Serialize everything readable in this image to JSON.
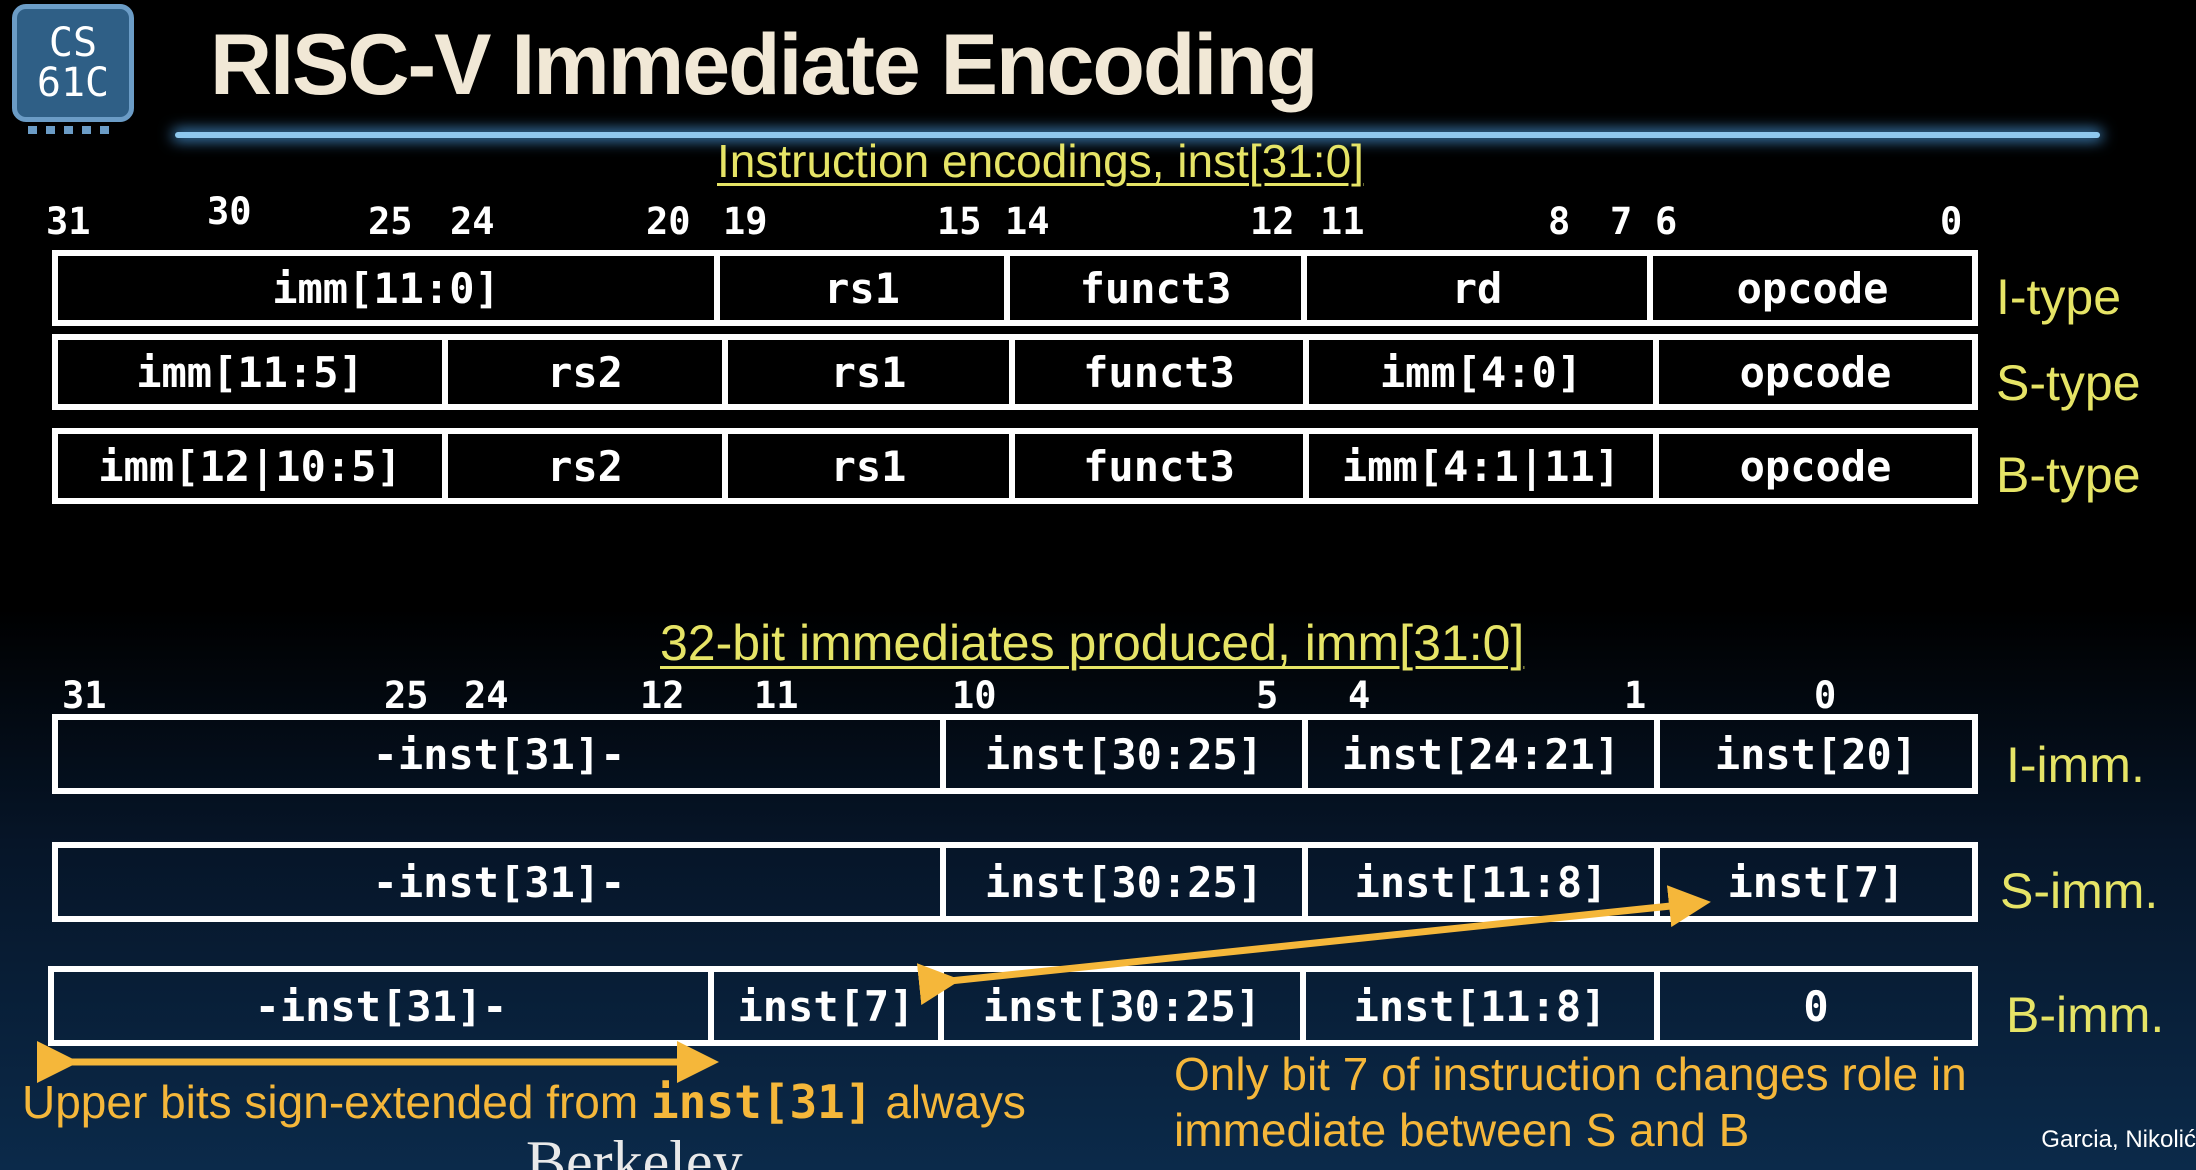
{
  "logo": {
    "line1": "CS",
    "line2": "61C"
  },
  "title": "RISC-V Immediate Encoding",
  "encodings": {
    "heading": "Instruction encodings, inst[31:0]",
    "bit_numbers": [
      "31",
      "30",
      "25",
      "24",
      "20",
      "19",
      "15",
      "14",
      "12",
      "11",
      "8",
      "7",
      "6",
      "0"
    ],
    "rows": [
      {
        "label": "I-type",
        "fields": [
          "imm[11:0]",
          "rs1",
          "funct3",
          "rd",
          "opcode"
        ]
      },
      {
        "label": "S-type",
        "fields": [
          "imm[11:5]",
          "rs2",
          "rs1",
          "funct3",
          "imm[4:0]",
          "opcode"
        ]
      },
      {
        "label": "B-type",
        "fields": [
          "imm[12|10:5]",
          "rs2",
          "rs1",
          "funct3",
          "imm[4:1|11]",
          "opcode"
        ]
      }
    ]
  },
  "immediates": {
    "heading": "32-bit immediates produced, imm[31:0]",
    "bit_numbers": [
      "31",
      "25",
      "24",
      "12",
      "11",
      "10",
      "5",
      "4",
      "1",
      "0"
    ],
    "rows": [
      {
        "label": "I-imm.",
        "fields": [
          "-inst[31]-",
          "inst[30:25]",
          "inst[24:21]",
          "inst[20]"
        ]
      },
      {
        "label": "S-imm.",
        "fields": [
          "-inst[31]-",
          "inst[30:25]",
          "inst[11:8]",
          "inst[7]"
        ]
      },
      {
        "label": "B-imm.",
        "fields": [
          "-inst[31]-",
          "inst[7]",
          "inst[30:25]",
          "inst[11:8]",
          "0"
        ]
      }
    ]
  },
  "notes": {
    "sign_prefix": "Upper bits sign-extended from ",
    "sign_code": "inst[31]",
    "sign_suffix": " always",
    "bit7_line1": "Only bit 7 of instruction changes role in",
    "bit7_line2": "immediate between S and B"
  },
  "footer": {
    "authors": "Garcia, Nikolić",
    "berkeley": "Berkeley"
  },
  "colors": {
    "accent_yellow": "#e6e466",
    "arrow_orange": "#f5b73a",
    "rule_blue": "#8ec8ee"
  }
}
